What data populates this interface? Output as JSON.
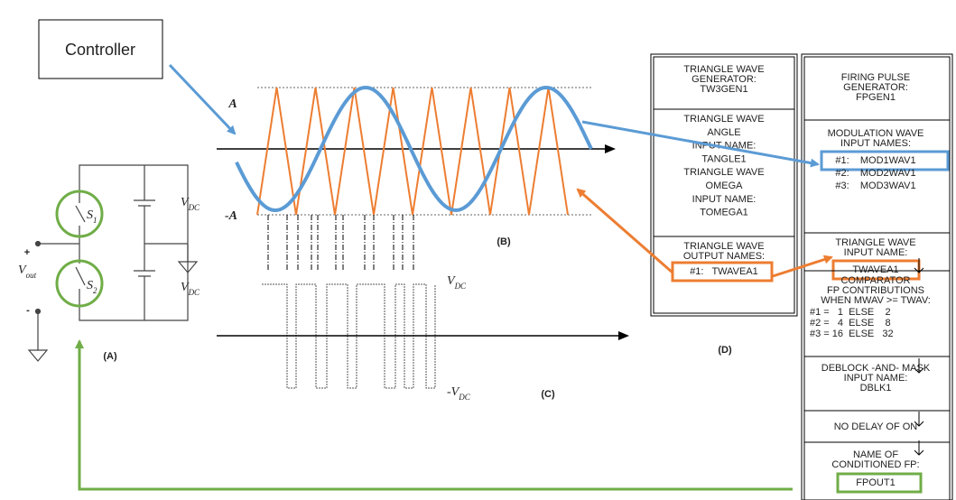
{
  "controller": "Controller",
  "circuit": {
    "switches": [
      {
        "base": "S",
        "sub": "1"
      },
      {
        "base": "S",
        "sub": "2"
      }
    ],
    "sources": [
      {
        "base": "V",
        "sub": "DC"
      },
      {
        "base": "V",
        "sub": "DC"
      }
    ],
    "output": {
      "base": "V",
      "sub": "out"
    },
    "plus": "+",
    "minus": "-",
    "caption": "(A)"
  },
  "carrier": {
    "top": "A",
    "bottom": "-A",
    "caption": "(B)"
  },
  "pulse": {
    "top": {
      "base": "V",
      "sub": "DC"
    },
    "bottom": {
      "prefix": "-",
      "base": "V",
      "sub": "DC"
    },
    "caption": "(C)"
  },
  "triangle_block": {
    "sections": [
      {
        "lines": [
          "TRIANGLE WAVE",
          "GENERATOR:",
          "TW3GEN1"
        ]
      },
      {
        "lines": [
          "TRIANGLE WAVE",
          "ANGLE",
          "INPUT NAME:",
          "TANGLE1",
          "TRIANGLE WAVE",
          "OMEGA",
          "INPUT NAME:",
          "TOMEGA1"
        ]
      },
      {
        "lines": [
          "TRIANGLE WAVE",
          "OUTPUT NAMES:"
        ],
        "items": [
          "#1:   TWAVEA1"
        ]
      }
    ],
    "caption": "(D)"
  },
  "firing_block": {
    "sections": [
      {
        "lines": [
          "FIRING PULSE",
          "GENERATOR:",
          "FPGEN1"
        ]
      },
      {
        "lines": [
          "MODULATION WAVE",
          "INPUT NAMES:"
        ],
        "items": [
          "#1:    MOD1WAV1",
          "#2:    MOD2WAV1",
          "#3:    MOD3WAV1"
        ]
      },
      {
        "lines": [
          "TRIANGLE WAVE",
          "INPUT NAME:"
        ],
        "items": [
          "TWAVEA1"
        ]
      },
      {
        "lines": [
          "COMPARATOR",
          "FP CONTRIBUTIONS",
          "WHEN MWAV >= TWAV:"
        ],
        "rows": [
          "#1 =   1  ELSE    2",
          "#2 =   4  ELSE    8",
          "#3 = 16  ELSE   32"
        ]
      },
      {
        "lines": [
          "DEBLOCK -AND- MASK",
          "INPUT NAME:",
          "DBLK1"
        ]
      },
      {
        "lines": [
          "NO DELAY OF ON"
        ]
      },
      {
        "lines": [
          "NAME OF",
          "CONDITIONED FP:"
        ],
        "items": [
          "FPOUT1"
        ]
      }
    ]
  }
}
